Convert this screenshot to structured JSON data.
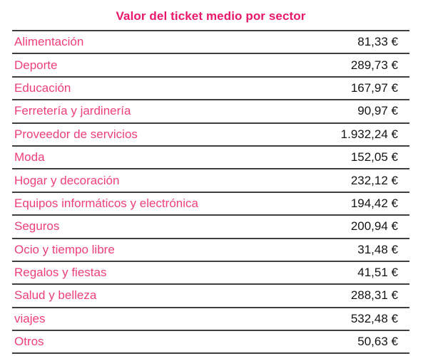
{
  "colors": {
    "title-pink": "#e9186b",
    "label-pink": "#ef3e7d",
    "value-black": "#141414",
    "line-gray": "#3f3f3f",
    "background": "#ffffff"
  },
  "table": {
    "title": "Valor del ticket medio por sector",
    "rows": [
      {
        "sector": "Alimentación",
        "value": "81,33 €"
      },
      {
        "sector": "Deporte",
        "value": "289,73 €"
      },
      {
        "sector": "Educación",
        "value": "167,97 €"
      },
      {
        "sector": "Ferretería y jardinería",
        "value": "90,97 €"
      },
      {
        "sector": "Proveedor de servicios",
        "value": "1.932,24 €"
      },
      {
        "sector": "Moda",
        "value": "152,05 €"
      },
      {
        "sector": "Hogar y decoración",
        "value": "232,12 €"
      },
      {
        "sector": "Equipos informáticos y electrónica",
        "value": "194,42 €"
      },
      {
        "sector": "Seguros",
        "value": "200,94 €"
      },
      {
        "sector": "Ocio y tiempo libre",
        "value": "31,48 €"
      },
      {
        "sector": "Regalos y fiestas",
        "value": "41,51 €"
      },
      {
        "sector": "Salud y belleza",
        "value": "288,31 €"
      },
      {
        "sector": "viajes",
        "value": "532,48 €"
      },
      {
        "sector": "Otros",
        "value": "50,63 €"
      }
    ]
  },
  "chart_data": {
    "type": "table",
    "title": "Valor del ticket medio por sector",
    "columns": [
      "Sector",
      "Valor del ticket medio"
    ],
    "categories": [
      "Alimentación",
      "Deporte",
      "Educación",
      "Ferretería y jardinería",
      "Proveedor de servicios",
      "Moda",
      "Hogar y decoración",
      "Equipos informáticos y electrónica",
      "Seguros",
      "Ocio y tiempo libre",
      "Regalos y fiestas",
      "Salud y belleza",
      "viajes",
      "Otros"
    ],
    "values": [
      81.33,
      289.73,
      167.97,
      90.97,
      1932.24,
      152.05,
      232.12,
      194.42,
      200.94,
      31.48,
      41.51,
      288.31,
      532.48,
      50.63
    ],
    "unit": "EUR",
    "number_format": "es-ES"
  }
}
